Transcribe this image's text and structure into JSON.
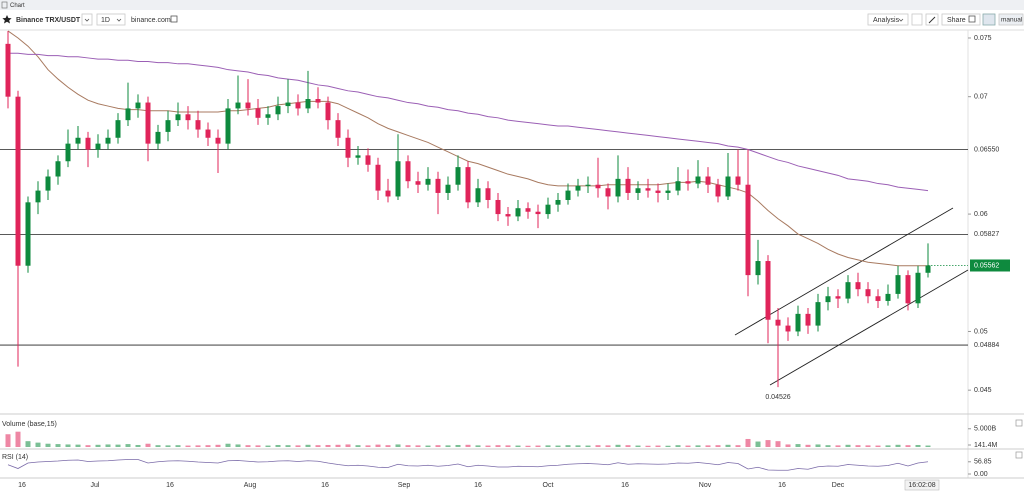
{
  "header": {
    "title": "Chart"
  },
  "toolbar": {
    "symbol": "Binance TRX/USDT",
    "interval": "1D",
    "source": "binance.com",
    "analysis": "Analysis",
    "share": "Share",
    "mode": "manual"
  },
  "chart_data": {
    "type": "candlestick",
    "up_color": "#0e8a3e",
    "down_color": "#e0245a",
    "ylim": [
      0.04314,
      0.07568
    ],
    "yticks": [
      0.045,
      0.05,
      0.06,
      0.07,
      0.075
    ],
    "levels": [
      {
        "value": 0.0655,
        "label": "0.06550"
      },
      0.05827,
      0.04884
    ],
    "last": 0.05562,
    "low_annotation": 0.04526,
    "x_labels": [
      "16",
      "Jul",
      "16",
      "Aug",
      "16",
      "Sep",
      "16",
      "Oct",
      "16",
      "Nov",
      "16",
      "Dec"
    ],
    "time": "16:02:08",
    "ohlc": [
      [
        0.0745,
        0.0756,
        0.069,
        0.07
      ],
      [
        0.07,
        0.0705,
        0.047,
        0.0556
      ],
      [
        0.0556,
        0.0615,
        0.055,
        0.061
      ],
      [
        0.061,
        0.0628,
        0.06,
        0.062
      ],
      [
        0.062,
        0.0638,
        0.0612,
        0.0632
      ],
      [
        0.0632,
        0.065,
        0.0625,
        0.0645
      ],
      [
        0.0645,
        0.0672,
        0.064,
        0.066
      ],
      [
        0.066,
        0.0675,
        0.0655,
        0.0665
      ],
      [
        0.0665,
        0.067,
        0.064,
        0.0655
      ],
      [
        0.0655,
        0.0668,
        0.0648,
        0.066
      ],
      [
        0.066,
        0.0672,
        0.0655,
        0.0665
      ],
      [
        0.0665,
        0.0686,
        0.066,
        0.068
      ],
      [
        0.068,
        0.0712,
        0.0675,
        0.069
      ],
      [
        0.069,
        0.0702,
        0.0682,
        0.0695
      ],
      [
        0.0695,
        0.07,
        0.0645,
        0.066
      ],
      [
        0.066,
        0.0676,
        0.0655,
        0.067
      ],
      [
        0.067,
        0.0688,
        0.0662,
        0.068
      ],
      [
        0.068,
        0.0695,
        0.0675,
        0.0685
      ],
      [
        0.0685,
        0.0692,
        0.0672,
        0.068
      ],
      [
        0.068,
        0.0688,
        0.0665,
        0.0672
      ],
      [
        0.0672,
        0.0678,
        0.0658,
        0.0665
      ],
      [
        0.0665,
        0.0672,
        0.0635,
        0.066
      ],
      [
        0.066,
        0.0698,
        0.0655,
        0.069
      ],
      [
        0.069,
        0.0718,
        0.0685,
        0.0695
      ],
      [
        0.0695,
        0.0715,
        0.0684,
        0.069
      ],
      [
        0.069,
        0.0698,
        0.0676,
        0.0682
      ],
      [
        0.0682,
        0.0692,
        0.0676,
        0.0685
      ],
      [
        0.0685,
        0.07,
        0.068,
        0.0692
      ],
      [
        0.0692,
        0.0715,
        0.0686,
        0.0695
      ],
      [
        0.0695,
        0.0702,
        0.0684,
        0.069
      ],
      [
        0.069,
        0.0722,
        0.0686,
        0.0698
      ],
      [
        0.0698,
        0.0708,
        0.069,
        0.0695
      ],
      [
        0.0695,
        0.07,
        0.0672,
        0.068
      ],
      [
        0.068,
        0.0686,
        0.0658,
        0.0665
      ],
      [
        0.0665,
        0.0672,
        0.064,
        0.0648
      ],
      [
        0.0648,
        0.0658,
        0.0642,
        0.065
      ],
      [
        0.065,
        0.0656,
        0.0636,
        0.0642
      ],
      [
        0.0642,
        0.0648,
        0.0612,
        0.062
      ],
      [
        0.062,
        0.063,
        0.061,
        0.0615
      ],
      [
        0.0615,
        0.0668,
        0.0612,
        0.0645
      ],
      [
        0.0645,
        0.065,
        0.0622,
        0.0628
      ],
      [
        0.0628,
        0.0636,
        0.0618,
        0.0625
      ],
      [
        0.0625,
        0.064,
        0.062,
        0.063
      ],
      [
        0.063,
        0.0636,
        0.06,
        0.0618
      ],
      [
        0.0618,
        0.0632,
        0.0612,
        0.0625
      ],
      [
        0.0625,
        0.065,
        0.062,
        0.064
      ],
      [
        0.064,
        0.0645,
        0.0605,
        0.061
      ],
      [
        0.061,
        0.063,
        0.0606,
        0.0622
      ],
      [
        0.0622,
        0.0628,
        0.0605,
        0.0612
      ],
      [
        0.0612,
        0.0618,
        0.0594,
        0.06
      ],
      [
        0.06,
        0.0606,
        0.059,
        0.0598
      ],
      [
        0.0598,
        0.0612,
        0.0594,
        0.0605
      ],
      [
        0.0605,
        0.061,
        0.0596,
        0.0602
      ],
      [
        0.0602,
        0.0608,
        0.0588,
        0.06
      ],
      [
        0.06,
        0.0614,
        0.0596,
        0.0608
      ],
      [
        0.0608,
        0.0618,
        0.0602,
        0.0612
      ],
      [
        0.0612,
        0.0626,
        0.0608,
        0.062
      ],
      [
        0.062,
        0.063,
        0.0615,
        0.0624
      ],
      [
        0.0624,
        0.0632,
        0.0618,
        0.0625
      ],
      [
        0.0625,
        0.0648,
        0.0614,
        0.0622
      ],
      [
        0.0622,
        0.0626,
        0.0604,
        0.0615
      ],
      [
        0.0615,
        0.065,
        0.061,
        0.063
      ],
      [
        0.063,
        0.064,
        0.0612,
        0.0618
      ],
      [
        0.0618,
        0.0628,
        0.0612,
        0.0622
      ],
      [
        0.0622,
        0.063,
        0.0614,
        0.062
      ],
      [
        0.062,
        0.0626,
        0.061,
        0.0618
      ],
      [
        0.0618,
        0.0626,
        0.0612,
        0.062
      ],
      [
        0.062,
        0.064,
        0.0616,
        0.0628
      ],
      [
        0.0628,
        0.0638,
        0.062,
        0.0626
      ],
      [
        0.0626,
        0.0646,
        0.0622,
        0.0632
      ],
      [
        0.0632,
        0.064,
        0.0618,
        0.0625
      ],
      [
        0.0625,
        0.063,
        0.061,
        0.0615
      ],
      [
        0.0615,
        0.0652,
        0.0612,
        0.0632
      ],
      [
        0.0632,
        0.0655,
        0.062,
        0.0625
      ],
      [
        0.0625,
        0.0655,
        0.053,
        0.0548
      ],
      [
        0.0548,
        0.0578,
        0.054,
        0.056
      ],
      [
        0.056,
        0.0565,
        0.049,
        0.051
      ],
      [
        0.051,
        0.052,
        0.04526,
        0.0505
      ],
      [
        0.0505,
        0.0512,
        0.0492,
        0.05
      ],
      [
        0.05,
        0.0522,
        0.0496,
        0.0515
      ],
      [
        0.0515,
        0.052,
        0.0498,
        0.0505
      ],
      [
        0.0505,
        0.0532,
        0.05,
        0.0525
      ],
      [
        0.0525,
        0.0538,
        0.0518,
        0.053
      ],
      [
        0.053,
        0.0536,
        0.052,
        0.0528
      ],
      [
        0.0528,
        0.0548,
        0.0524,
        0.0542
      ],
      [
        0.0542,
        0.055,
        0.053,
        0.0536
      ],
      [
        0.0536,
        0.0542,
        0.0524,
        0.053
      ],
      [
        0.053,
        0.0536,
        0.052,
        0.0526
      ],
      [
        0.0526,
        0.054,
        0.0522,
        0.0532
      ],
      [
        0.0532,
        0.0556,
        0.0528,
        0.0548
      ],
      [
        0.0548,
        0.0552,
        0.0518,
        0.0524
      ],
      [
        0.0524,
        0.0556,
        0.052,
        0.055
      ],
      [
        0.055,
        0.0575,
        0.0546,
        0.05562
      ]
    ],
    "moving_averages": [
      {
        "color": "#a87a60",
        "values": [
          0.0756,
          0.075,
          0.0743,
          0.0734,
          0.0723,
          0.0715,
          0.0708,
          0.0702,
          0.0697,
          0.0694,
          0.0692,
          0.069,
          0.0689,
          0.0689,
          0.0688,
          0.0688,
          0.0688,
          0.0687,
          0.0687,
          0.0687,
          0.0687,
          0.0687,
          0.0688,
          0.0688,
          0.0689,
          0.069,
          0.0691,
          0.0693,
          0.0694,
          0.0695,
          0.0696,
          0.0696,
          0.0696,
          0.0694,
          0.069,
          0.0686,
          0.0682,
          0.0677,
          0.0673,
          0.067,
          0.0667,
          0.0664,
          0.0661,
          0.0657,
          0.0653,
          0.0649,
          0.0645,
          0.0643,
          0.064,
          0.0637,
          0.0634,
          0.0632,
          0.063,
          0.0627,
          0.0625,
          0.0624,
          0.0624,
          0.0624,
          0.0624,
          0.0624,
          0.0625,
          0.0625,
          0.0625,
          0.0625,
          0.0625,
          0.0625,
          0.0626,
          0.0627,
          0.0627,
          0.0628,
          0.0627,
          0.0625,
          0.0623,
          0.0621,
          0.0618,
          0.0611,
          0.0603,
          0.0596,
          0.059,
          0.0583,
          0.0579,
          0.0575,
          0.057,
          0.0566,
          0.0563,
          0.0561,
          0.0559,
          0.0558,
          0.0557,
          0.0556,
          0.0556,
          0.0556,
          0.0556
        ]
      },
      {
        "color": "#9b5fb5",
        "values": [
          0.0737,
          0.0737,
          0.0736,
          0.0736,
          0.0735,
          0.0735,
          0.0734,
          0.0734,
          0.0733,
          0.0732,
          0.0732,
          0.0731,
          0.0731,
          0.073,
          0.073,
          0.0729,
          0.0729,
          0.0728,
          0.0728,
          0.0727,
          0.0726,
          0.0725,
          0.0723,
          0.0722,
          0.0721,
          0.0719,
          0.0718,
          0.0716,
          0.0715,
          0.0714,
          0.0712,
          0.071,
          0.0709,
          0.0707,
          0.0705,
          0.0704,
          0.0702,
          0.07,
          0.0699,
          0.0697,
          0.0695,
          0.0694,
          0.0692,
          0.0691,
          0.0689,
          0.0688,
          0.0686,
          0.0685,
          0.0683,
          0.0682,
          0.068,
          0.0679,
          0.0678,
          0.0677,
          0.0676,
          0.0675,
          0.0675,
          0.0674,
          0.0673,
          0.0672,
          0.0671,
          0.067,
          0.0669,
          0.0668,
          0.0667,
          0.0666,
          0.0665,
          0.0664,
          0.0663,
          0.0662,
          0.0661,
          0.066,
          0.0658,
          0.0657,
          0.0655,
          0.0652,
          0.0649,
          0.0646,
          0.0644,
          0.0641,
          0.0639,
          0.0637,
          0.0635,
          0.0633,
          0.063,
          0.0629,
          0.0628,
          0.0626,
          0.0625,
          0.0623,
          0.0622,
          0.0621,
          0.062
        ]
      }
    ],
    "volume": {
      "title": "Volume (base,15)",
      "ylim": [
        0,
        8500
      ],
      "yticks": [
        {
          "value": 141.4,
          "label": "141.4M"
        },
        {
          "value": 5000,
          "label": "5.000B"
        }
      ],
      "values": [
        3500,
        4200,
        1600,
        1200,
        900,
        800,
        700,
        650,
        500,
        600,
        700,
        650,
        800,
        550,
        900,
        500,
        450,
        500,
        400,
        450,
        500,
        600,
        900,
        700,
        500,
        450,
        400,
        550,
        500,
        450,
        600,
        500,
        550,
        600,
        700,
        500,
        450,
        650,
        500,
        700,
        500,
        450,
        400,
        500,
        450,
        550,
        600,
        450,
        400,
        500,
        450,
        400,
        350,
        400,
        450,
        400,
        500,
        450,
        400,
        500,
        450,
        600,
        500,
        400,
        350,
        400,
        350,
        500,
        400,
        450,
        450,
        500,
        600,
        500,
        2200,
        1500,
        1900,
        1600,
        700,
        800,
        600,
        700,
        500,
        450,
        600,
        500,
        450,
        400,
        450,
        600,
        500,
        550,
        400
      ]
    },
    "rsi": {
      "title": "RSI (14)",
      "color": "#7a6aa8",
      "ylim": [
        0,
        100
      ],
      "yticks": [
        {
          "value": 0,
          "label": "0.00"
        },
        56.85
      ],
      "values": [
        45,
        30,
        52,
        56,
        58,
        60,
        63,
        64,
        58,
        60,
        61,
        64,
        66,
        66,
        52,
        57,
        60,
        61,
        59,
        56,
        54,
        52,
        61,
        62,
        59,
        56,
        57,
        60,
        61,
        58,
        61,
        59,
        52,
        46,
        41,
        43,
        40,
        35,
        34,
        47,
        41,
        40,
        43,
        39,
        42,
        48,
        37,
        43,
        40,
        36,
        36,
        39,
        38,
        37,
        41,
        43,
        47,
        49,
        50,
        48,
        45,
        53,
        47,
        49,
        48,
        47,
        48,
        52,
        51,
        54,
        50,
        45,
        54,
        50,
        28,
        35,
        24,
        23,
        23,
        30,
        27,
        37,
        40,
        39,
        46,
        43,
        40,
        39,
        42,
        51,
        40,
        52,
        56.85
      ]
    }
  }
}
